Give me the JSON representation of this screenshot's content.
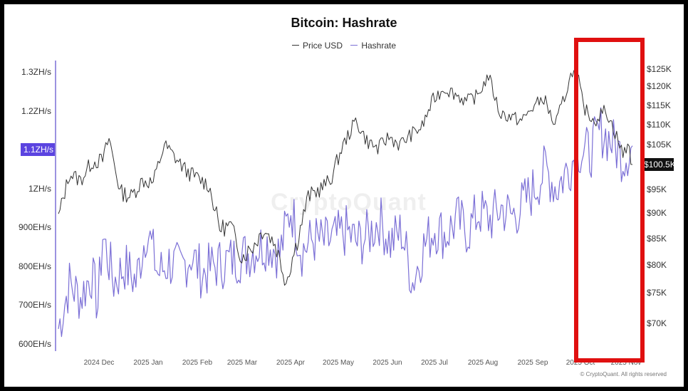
{
  "chart_data": {
    "type": "line",
    "title": "Bitcoin: Hashrate",
    "legend": [
      {
        "name": "Price USD",
        "color": "#333333"
      },
      {
        "name": "Hashrate",
        "color": "#7b6fd6"
      }
    ],
    "x_ticks": [
      "2024 Dec",
      "2025 Jan",
      "2025 Feb",
      "2025 Mar",
      "2025 Apr",
      "2025 May",
      "2025 Jun",
      "2025 Jul",
      "2025 Aug",
      "2025 Sep",
      "2025 Oct",
      "2025 Nov"
    ],
    "y_left_ticks": [
      "1.3ZH/s",
      "1.2ZH/s",
      "1.1ZH/s",
      "1ZH/s",
      "900EH/s",
      "800EH/s",
      "700EH/s",
      "600EH/s"
    ],
    "y_right_ticks": [
      "$125K",
      "$120K",
      "$115K",
      "$110K",
      "$105K",
      "$100.5K",
      "$95K",
      "$90K",
      "$85K",
      "$80K",
      "$75K",
      "$70K"
    ],
    "y_left_highlight": "1.1ZH/s",
    "y_right_highlight": "$100.5K",
    "ylim_left_ehs": [
      575,
      1325
    ],
    "price_points": [
      [
        "2024-11-15",
        89000
      ],
      [
        "2024-11-22",
        98500
      ],
      [
        "2024-11-29",
        97000
      ],
      [
        "2024-12-06",
        101000
      ],
      [
        "2024-12-13",
        101500
      ],
      [
        "2024-12-17",
        106500
      ],
      [
        "2024-12-24",
        94500
      ],
      [
        "2024-12-31",
        93500
      ],
      [
        "2025-01-07",
        97000
      ],
      [
        "2025-01-14",
        96500
      ],
      [
        "2025-01-21",
        105000
      ],
      [
        "2025-01-28",
        102000
      ],
      [
        "2025-02-04",
        99000
      ],
      [
        "2025-02-11",
        97500
      ],
      [
        "2025-02-18",
        96000
      ],
      [
        "2025-02-25",
        87000
      ],
      [
        "2025-03-04",
        87500
      ],
      [
        "2025-03-11",
        81500
      ],
      [
        "2025-03-18",
        83500
      ],
      [
        "2025-03-25",
        87000
      ],
      [
        "2025-04-01",
        84000
      ],
      [
        "2025-04-08",
        77000
      ],
      [
        "2025-04-15",
        84500
      ],
      [
        "2025-04-22",
        93500
      ],
      [
        "2025-04-29",
        95000
      ],
      [
        "2025-05-06",
        97000
      ],
      [
        "2025-05-13",
        104000
      ],
      [
        "2025-05-22",
        111000
      ],
      [
        "2025-05-29",
        106000
      ],
      [
        "2025-06-05",
        104000
      ],
      [
        "2025-06-12",
        107000
      ],
      [
        "2025-06-19",
        105000
      ],
      [
        "2025-06-26",
        107500
      ],
      [
        "2025-07-03",
        109500
      ],
      [
        "2025-07-10",
        116500
      ],
      [
        "2025-07-17",
        119500
      ],
      [
        "2025-07-24",
        118000
      ],
      [
        "2025-07-31",
        116000
      ],
      [
        "2025-08-07",
        117500
      ],
      [
        "2025-08-14",
        123000
      ],
      [
        "2025-08-21",
        113000
      ],
      [
        "2025-08-28",
        112000
      ],
      [
        "2025-09-04",
        111000
      ],
      [
        "2025-09-11",
        114500
      ],
      [
        "2025-09-18",
        117000
      ],
      [
        "2025-09-25",
        109500
      ],
      [
        "2025-10-02",
        118500
      ],
      [
        "2025-10-06",
        124500
      ],
      [
        "2025-10-10",
        121500
      ],
      [
        "2025-10-13",
        114500
      ],
      [
        "2025-10-20",
        111000
      ],
      [
        "2025-10-27",
        114000
      ],
      [
        "2025-11-03",
        107000
      ],
      [
        "2025-11-07",
        102500
      ],
      [
        "2025-11-10",
        105500
      ],
      [
        "2025-11-13",
        100500
      ]
    ],
    "hashrate_points": [
      [
        "2024-11-15",
        640
      ],
      [
        "2024-11-22",
        755
      ],
      [
        "2024-11-29",
        720
      ],
      [
        "2024-12-06",
        780
      ],
      [
        "2024-12-10",
        700
      ],
      [
        "2024-12-13",
        880
      ],
      [
        "2024-12-20",
        760
      ],
      [
        "2024-12-27",
        800
      ],
      [
        "2025-01-03",
        760
      ],
      [
        "2025-01-10",
        900
      ],
      [
        "2025-01-17",
        780
      ],
      [
        "2025-01-24",
        810
      ],
      [
        "2025-01-31",
        790
      ],
      [
        "2025-02-07",
        830
      ],
      [
        "2025-02-14",
        780
      ],
      [
        "2025-02-21",
        800
      ],
      [
        "2025-02-28",
        810
      ],
      [
        "2025-03-07",
        820
      ],
      [
        "2025-03-14",
        830
      ],
      [
        "2025-03-21",
        850
      ],
      [
        "2025-03-28",
        860
      ],
      [
        "2025-04-04",
        830
      ],
      [
        "2025-04-11",
        950
      ],
      [
        "2025-04-18",
        840
      ],
      [
        "2025-04-25",
        870
      ],
      [
        "2025-05-02",
        860
      ],
      [
        "2025-05-09",
        870
      ],
      [
        "2025-05-16",
        890
      ],
      [
        "2025-05-23",
        860
      ],
      [
        "2025-05-30",
        880
      ],
      [
        "2025-06-06",
        920
      ],
      [
        "2025-06-13",
        860
      ],
      [
        "2025-06-20",
        890
      ],
      [
        "2025-06-27",
        760
      ],
      [
        "2025-07-04",
        850
      ],
      [
        "2025-07-11",
        900
      ],
      [
        "2025-07-18",
        880
      ],
      [
        "2025-07-25",
        920
      ],
      [
        "2025-08-01",
        890
      ],
      [
        "2025-08-08",
        940
      ],
      [
        "2025-08-15",
        920
      ],
      [
        "2025-08-22",
        950
      ],
      [
        "2025-08-29",
        930
      ],
      [
        "2025-09-05",
        960
      ],
      [
        "2025-09-12",
        1000
      ],
      [
        "2025-09-19",
        1050
      ],
      [
        "2025-09-26",
        1000
      ],
      [
        "2025-10-03",
        1050
      ],
      [
        "2025-10-10",
        1100
      ],
      [
        "2025-10-17",
        1090
      ],
      [
        "2025-10-24",
        1150
      ],
      [
        "2025-10-31",
        1120
      ],
      [
        "2025-11-07",
        1080
      ],
      [
        "2025-11-13",
        1110
      ]
    ]
  },
  "credit": "© CryptoQuant. All rights reserved",
  "watermark": "CryptoQuant"
}
